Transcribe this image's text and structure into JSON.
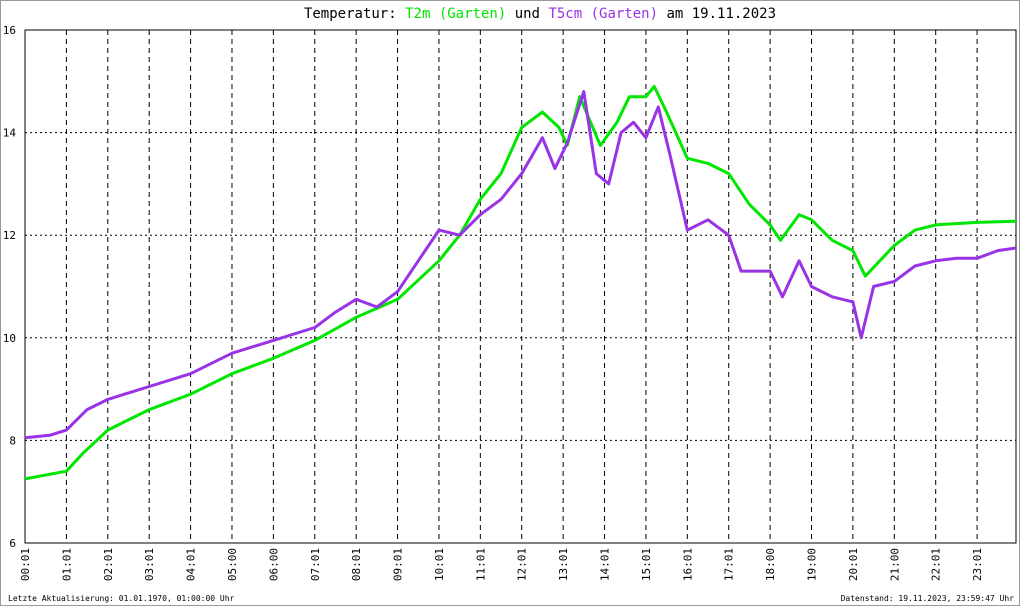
{
  "chart_data": {
    "type": "line",
    "title_prefix": "Temperatur:",
    "title_join": "und",
    "title_suffix": "am 19.11.2023",
    "footer_left": "Letzte Aktualisierung: 01.01.1970, 01:00:00 Uhr",
    "footer_right": "Datenstand: 19.11.2023, 23:59:47 Uhr",
    "xlim": [
      0,
      23.94
    ],
    "ylim": [
      6,
      16
    ],
    "yticks": [
      6,
      8,
      10,
      12,
      14,
      16
    ],
    "grid": true,
    "xticks": [
      {
        "value": 0,
        "label": "00:01"
      },
      {
        "value": 1,
        "label": "01:01"
      },
      {
        "value": 2,
        "label": "02:01"
      },
      {
        "value": 3,
        "label": "03:01"
      },
      {
        "value": 4,
        "label": "04:01"
      },
      {
        "value": 5,
        "label": "05:00"
      },
      {
        "value": 6,
        "label": "06:00"
      },
      {
        "value": 7,
        "label": "07:01"
      },
      {
        "value": 8,
        "label": "08:01"
      },
      {
        "value": 9,
        "label": "09:01"
      },
      {
        "value": 10,
        "label": "10:01"
      },
      {
        "value": 11,
        "label": "11:01"
      },
      {
        "value": 12,
        "label": "12:01"
      },
      {
        "value": 13,
        "label": "13:01"
      },
      {
        "value": 14,
        "label": "14:01"
      },
      {
        "value": 15,
        "label": "15:01"
      },
      {
        "value": 16,
        "label": "16:01"
      },
      {
        "value": 17,
        "label": "17:01"
      },
      {
        "value": 18,
        "label": "18:00"
      },
      {
        "value": 19,
        "label": "19:00"
      },
      {
        "value": 20,
        "label": "20:01"
      },
      {
        "value": 21,
        "label": "21:00"
      },
      {
        "value": 22,
        "label": "22:01"
      },
      {
        "value": 23,
        "label": "23:01"
      }
    ],
    "series": [
      {
        "name": "T2m (Garten)",
        "color": "#00e600",
        "x": [
          0,
          1,
          1.4,
          2,
          3,
          4,
          5,
          6,
          7,
          8,
          9,
          10,
          10.5,
          11,
          11.5,
          12,
          12.5,
          12.9,
          13.1,
          13.4,
          13.9,
          14.3,
          14.6,
          15,
          15.2,
          15.5,
          16,
          16.5,
          17,
          17.5,
          18,
          18.25,
          18.7,
          19,
          19.5,
          20,
          20.3,
          21,
          21.5,
          22,
          23,
          23.94
        ],
        "values": [
          7.25,
          7.4,
          7.75,
          8.2,
          8.6,
          8.9,
          9.3,
          9.6,
          9.95,
          10.4,
          10.75,
          11.5,
          12.0,
          12.7,
          13.2,
          14.1,
          14.4,
          14.1,
          13.75,
          14.7,
          13.75,
          14.2,
          14.7,
          14.7,
          14.9,
          14.4,
          13.5,
          13.4,
          13.2,
          12.6,
          12.2,
          11.9,
          12.4,
          12.3,
          11.9,
          11.7,
          11.2,
          11.8,
          12.1,
          12.2,
          12.25,
          12.27
        ]
      },
      {
        "name": "T5cm (Garten)",
        "color": "#9933e6",
        "x": [
          0,
          0.6,
          1,
          1.5,
          2,
          3,
          4,
          5,
          6,
          7,
          7.5,
          8,
          8.5,
          9,
          9.5,
          10,
          10.5,
          11,
          11.5,
          12,
          12.5,
          12.8,
          13.1,
          13.5,
          13.8,
          14.1,
          14.4,
          14.7,
          15,
          15.3,
          15.6,
          16,
          16.5,
          17,
          17.3,
          18,
          18.3,
          18.7,
          19,
          19.5,
          20,
          20.2,
          20.5,
          21,
          21.5,
          22,
          22.5,
          23,
          23.5,
          23.94
        ],
        "values": [
          8.05,
          8.1,
          8.2,
          8.6,
          8.8,
          9.05,
          9.3,
          9.7,
          9.95,
          10.2,
          10.5,
          10.75,
          10.6,
          10.9,
          11.5,
          12.1,
          12.0,
          12.4,
          12.7,
          13.2,
          13.9,
          13.3,
          13.8,
          14.8,
          13.2,
          13.0,
          14.0,
          14.2,
          13.9,
          14.5,
          13.5,
          12.1,
          12.3,
          12.0,
          11.3,
          11.3,
          10.8,
          11.5,
          11.0,
          10.8,
          10.7,
          10.0,
          11.0,
          11.1,
          11.4,
          11.5,
          11.55,
          11.55,
          11.7,
          11.75
        ]
      }
    ]
  }
}
